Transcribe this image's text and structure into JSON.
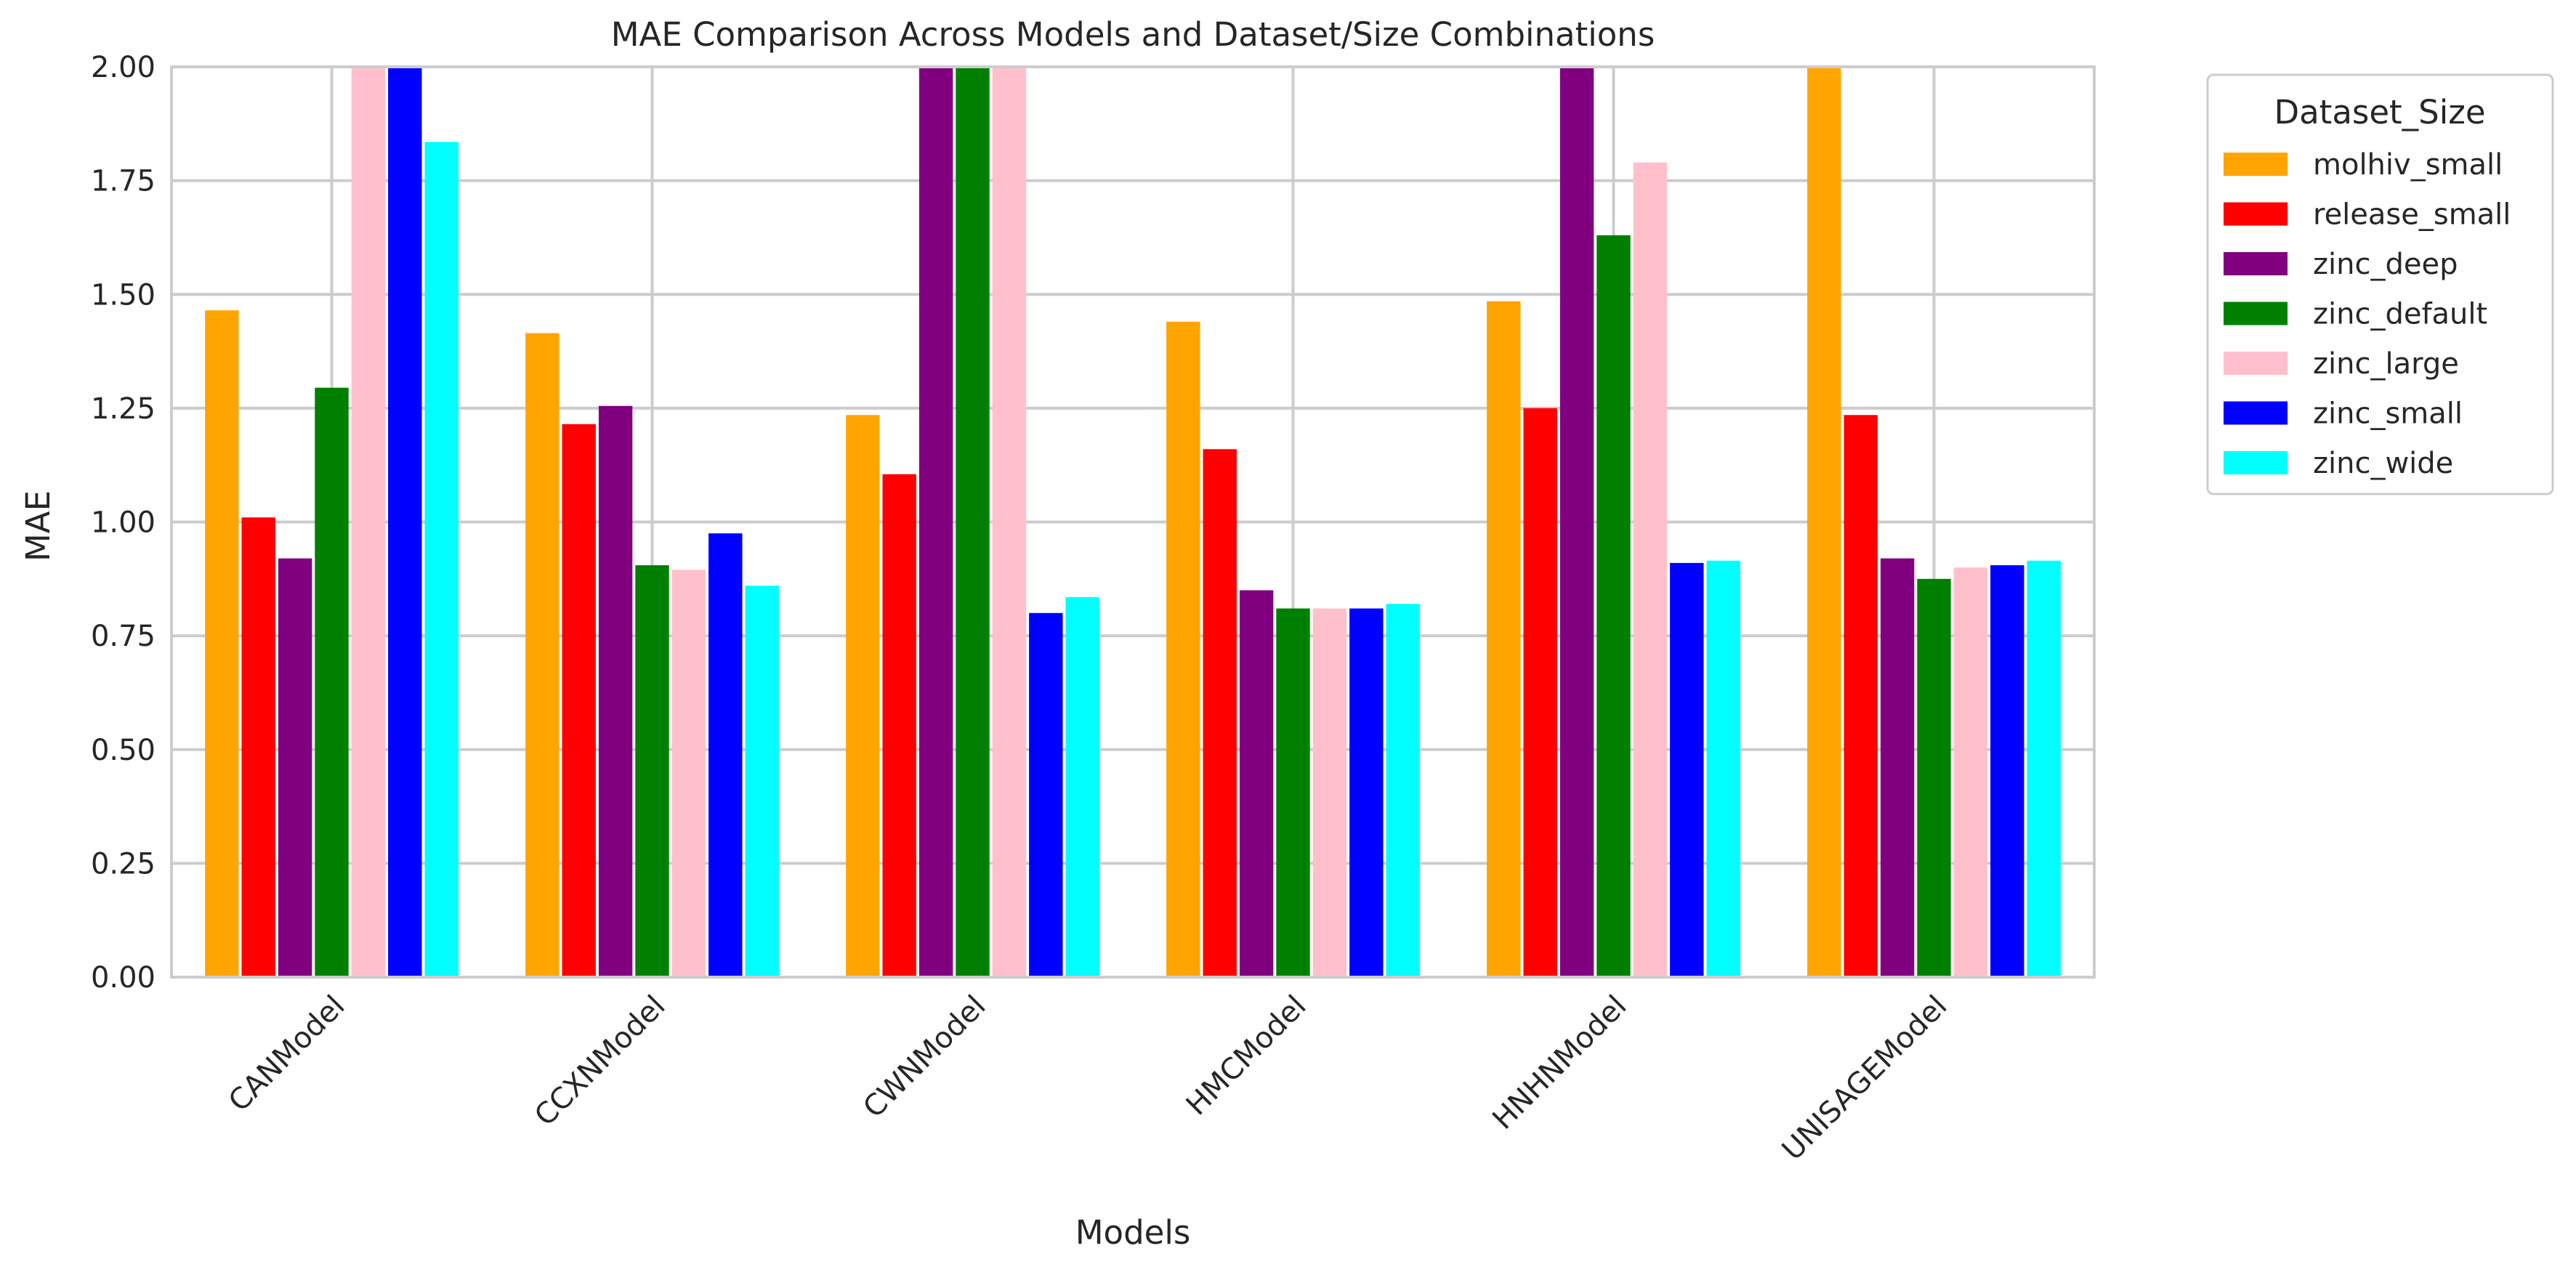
{
  "chart_data": {
    "type": "bar",
    "title": "MAE Comparison Across Models and Dataset/Size Combinations",
    "xlabel": "Models",
    "ylabel": "MAE",
    "ylim": [
      0,
      2.0
    ],
    "yticks": [
      "0.00",
      "0.25",
      "0.50",
      "0.75",
      "1.00",
      "1.25",
      "1.50",
      "1.75",
      "2.00"
    ],
    "grid": true,
    "legend_title": "Dataset_Size",
    "legend_position": "outside-top-right",
    "categories": [
      "CANModel",
      "CCXNModel",
      "CWNModel",
      "HMCModel",
      "HNHNModel",
      "UNISAGEModel"
    ],
    "series": [
      {
        "name": "molhiv_small",
        "color": "#FFA500",
        "values": [
          1.465,
          1.415,
          1.235,
          1.44,
          1.485,
          2.0
        ]
      },
      {
        "name": "release_small",
        "color": "#FF0000",
        "values": [
          1.01,
          1.215,
          1.105,
          1.16,
          1.25,
          1.235
        ]
      },
      {
        "name": "zinc_deep",
        "color": "#800080",
        "values": [
          0.92,
          1.255,
          2.0,
          0.85,
          2.0,
          0.92
        ]
      },
      {
        "name": "zinc_default",
        "color": "#008000",
        "values": [
          1.295,
          0.905,
          2.0,
          0.81,
          1.63,
          0.875
        ]
      },
      {
        "name": "zinc_large",
        "color": "#FFC0CB",
        "values": [
          2.0,
          0.895,
          2.0,
          0.81,
          1.79,
          0.9
        ]
      },
      {
        "name": "zinc_small",
        "color": "#0000FF",
        "values": [
          2.0,
          0.975,
          0.8,
          0.81,
          0.91,
          0.905
        ]
      },
      {
        "name": "zinc_wide",
        "color": "#00FFFF",
        "values": [
          1.835,
          0.86,
          0.835,
          0.82,
          0.915,
          0.915
        ]
      }
    ]
  }
}
